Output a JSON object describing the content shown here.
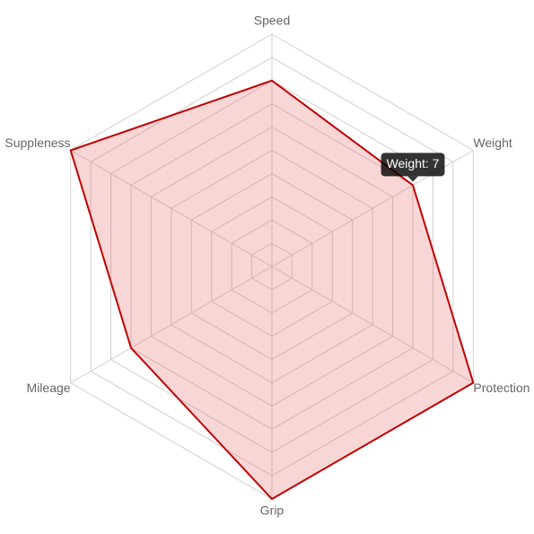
{
  "chart_data": {
    "type": "radar",
    "categories": [
      "Speed",
      "Weight",
      "Protection",
      "Grip",
      "Mileage",
      "Suppleness"
    ],
    "series": [
      {
        "color": "#c00000",
        "fill": "rgba(230, 90, 90, 0.25)",
        "values": [
          8,
          7,
          10,
          10,
          7,
          10
        ]
      }
    ],
    "rlim": [
      0,
      10
    ],
    "rticks": [
      1,
      2,
      3,
      4,
      5,
      6,
      7,
      8,
      9,
      10
    ],
    "grid": true,
    "tooltip": {
      "text": "Weight: 7",
      "category_index": 1
    }
  }
}
